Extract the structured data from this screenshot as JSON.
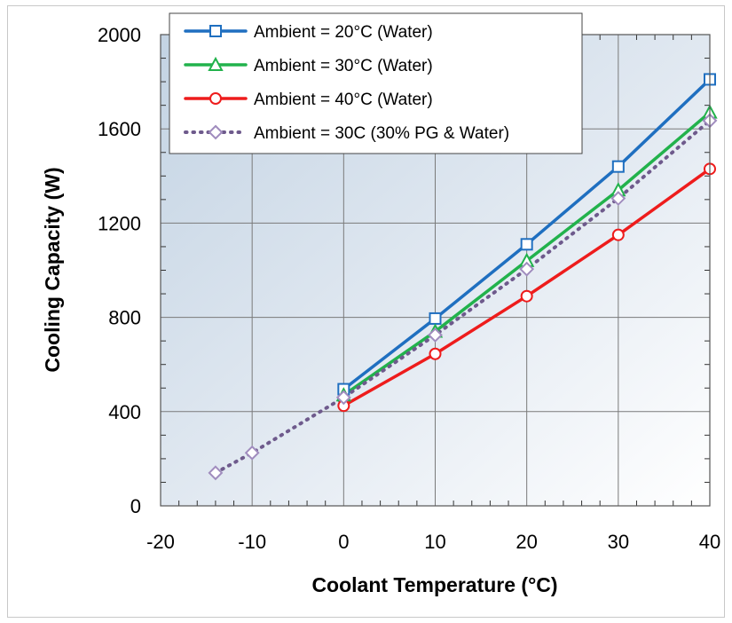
{
  "chart_data": {
    "type": "line",
    "title": "",
    "xlabel": "Coolant Temperature (°C)",
    "ylabel": "Cooling Capacity (W)",
    "xlim": [
      -20,
      40
    ],
    "ylim": [
      0,
      2000
    ],
    "x_ticks": [
      "-20",
      "-10",
      "0",
      "10",
      "20",
      "30",
      "40"
    ],
    "y_ticks": [
      "0",
      "400",
      "800",
      "1200",
      "1600",
      "2000"
    ],
    "grid": true,
    "legend_position": "top-left",
    "series": [
      {
        "name": "Ambient = 20°C (Water)",
        "color": "#1f6fc0",
        "marker": "square",
        "line": "solid",
        "x": [
          0,
          10,
          20,
          30,
          40
        ],
        "y": [
          495,
          795,
          1110,
          1440,
          1810
        ]
      },
      {
        "name": "Ambient = 30°C (Water)",
        "color": "#22b24c",
        "marker": "triangle",
        "line": "solid",
        "x": [
          0,
          10,
          20,
          30,
          40
        ],
        "y": [
          470,
          740,
          1040,
          1340,
          1670
        ]
      },
      {
        "name": "Ambient = 40°C (Water)",
        "color": "#ee1c1c",
        "marker": "circle",
        "line": "solid",
        "x": [
          0,
          10,
          20,
          30,
          40
        ],
        "y": [
          425,
          645,
          890,
          1150,
          1430
        ]
      },
      {
        "name": "Ambient = 30C (30% PG & Water)",
        "color": "#6e5a8c",
        "marker_color": "#a08cbe",
        "marker": "diamond",
        "line": "dotted",
        "x": [
          -14,
          -10,
          0,
          10,
          20,
          30,
          40
        ],
        "y": [
          140,
          225,
          460,
          725,
          1005,
          1305,
          1635
        ]
      }
    ]
  }
}
